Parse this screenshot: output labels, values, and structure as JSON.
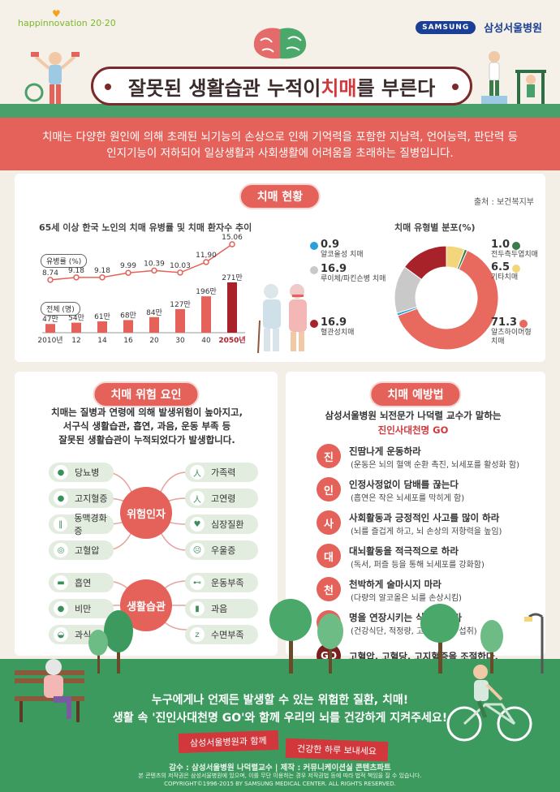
{
  "header": {
    "brand_left": "happinnovation 20·20",
    "samsung": "SAMSUNG",
    "hospital": "삼성서울병원",
    "title_pre": "잘못된 생활습관 누적이 ",
    "title_hl": "치매",
    "title_post": "를 부른다"
  },
  "intro": {
    "line1": "치매는 다양한 원인에 의해 초래된 뇌기능의 손상으로 인해 기억력을 포함한 지남력, 언어능력, 판단력 등",
    "line2": "인지기능이 저하되어 일상생활과 사회생활에 어려움을 초래하는 질병입니다."
  },
  "status": {
    "heading": "치매 현황",
    "source": "출처 : 보건복지부",
    "trend_title": "65세 이상 한국 노인의 치매 유병률 및 치매 환자수 추이",
    "prevalence_label": "유병률 (%)",
    "patients_label": "전체 (명)",
    "pie_title": "치매 유형별 분포(%)"
  },
  "chart_data": [
    {
      "type": "bar",
      "title": "65세 이상 한국 노인의 치매 유병률 및 치매 환자수 추이",
      "categories": [
        "2010년",
        "12",
        "14",
        "16",
        "20",
        "30",
        "40",
        "2050년"
      ],
      "series": [
        {
          "name": "전체 (명)",
          "values": [
            47,
            54,
            61,
            68,
            84,
            127,
            196,
            271
          ],
          "labels": [
            "47만",
            "54만",
            "61만",
            "68만",
            "84만",
            "127만",
            "196만",
            "271만"
          ]
        },
        {
          "name": "유병률 (%)",
          "values": [
            8.74,
            9.18,
            9.18,
            9.99,
            10.39,
            10.03,
            11.9,
            15.06
          ],
          "labels": [
            "8.74",
            "9.18",
            "9.18",
            "9.99",
            "10.39",
            "10.03",
            "11,90",
            "15.06"
          ]
        }
      ],
      "colors": {
        "bar": "#e5625a",
        "bar_last": "#a8222a",
        "line": "#e5625a"
      }
    },
    {
      "type": "pie",
      "title": "치매 유형별 분포(%)",
      "slices": [
        {
          "label": "알츠하이머형 치매",
          "value": 71.3,
          "color": "#e86a5e"
        },
        {
          "label": "혈관성치매",
          "value": 16.9,
          "color": "#a8222a"
        },
        {
          "label": "루이체/파킨슨병 치매",
          "value": 16.9,
          "color": "#c9c9c9"
        },
        {
          "label": "알코올성 치매",
          "value": 0.9,
          "color": "#2aa0d8"
        },
        {
          "label": "전두측두엽치매",
          "value": 1.0,
          "color": "#3a7d4a"
        },
        {
          "label": "기타치매",
          "value": 6.5,
          "color": "#f3d67b"
        }
      ]
    }
  ],
  "pie_labels": [
    {
      "value": "0.9",
      "name": "알코올성 치매"
    },
    {
      "value": "16.9",
      "name": "루이체/파킨슨병 치매"
    },
    {
      "value": "16.9",
      "name": "혈관성치매"
    },
    {
      "value": "1.0",
      "name": "전두측두엽치매"
    },
    {
      "value": "6.5",
      "name": "기타치매"
    },
    {
      "value": "71.3",
      "name": "알츠하이머형 치매"
    }
  ],
  "risk": {
    "heading": "치매 위험 요인",
    "desc1": "치매는 질병과 연령에 의해 발생위험이 높아지고,",
    "desc2": "서구식 생활습관, 흡연, 과음, 운동 부족 등",
    "desc3": "잘못된 생활습관이 누적되었다가 발생합니다.",
    "hub1": "위험인자",
    "hub2": "생활습관",
    "factors_left": [
      "당뇨병",
      "고지혈증",
      "동맥경화증",
      "고혈압"
    ],
    "factors_right": [
      "가족력",
      "고연령",
      "심장질환",
      "우울증"
    ],
    "habits_left": [
      "흡연",
      "비만",
      "과식"
    ],
    "habits_right": [
      "운동부족",
      "과음",
      "수면부족"
    ]
  },
  "prevention": {
    "heading": "치매 예방법",
    "intro1": "삼성서울병원 뇌전문가 나덕렬 교수가 말하는",
    "intro2": "진인사대천명 GO",
    "items": [
      {
        "badge": "진",
        "title": "진땀나게 운동하라",
        "sub": "(운동은 뇌의 혈액 순환 촉진, 뇌세포를 활성화 함)"
      },
      {
        "badge": "인",
        "title": "인정사정없이 담배를 끊는다",
        "sub": "(흡연은 작은 뇌세포를 막히게 함)"
      },
      {
        "badge": "사",
        "title": "사회활동과 긍정적인 사고를 많이 하라",
        "sub": "(뇌를 즐겁게 하고, 뇌 손상의 저항력을 높임)"
      },
      {
        "badge": "대",
        "title": "대뇌활동을 적극적으로 하라",
        "sub": "(독서, 퍼즐 등을 통해 뇌세포를 강화함)"
      },
      {
        "badge": "천",
        "title": "천박하게 술마시지 마라",
        "sub": "(다량의 알코올은 뇌를 손상시킴)"
      },
      {
        "badge": "명",
        "title": "명을 연장시키는 식사를 하라",
        "sub": "(건강식단, 적정량, 고른 영양소 섭취)"
      },
      {
        "badge": "GO",
        "title": "고혈압, 고혈당, 고지혈증을 조절한다.",
        "sub": ""
      }
    ]
  },
  "footer": {
    "msg1": "누구에게나 언제든 발생할 수 있는 위험한 질환, 치매!",
    "msg2": "생활 속 '진인사대천명 GO'와 함께 우리의 뇌를 건강하게 지켜주세요!",
    "ribbon1": "삼성서울병원과 함께",
    "ribbon2": "건강한 하루 보내세요",
    "credit1": "감수 : 삼성서울병원 나덕렬교수  |  제작 : 커뮤니케이션실 콘텐츠파트",
    "credit2": "본 콘텐츠의 저작권은 삼성서울병원에 있으며, 이를 무단 이용하는 경우 저작권법 등에 따라 법적 책임을 질 수 있습니다.",
    "credit3": "COPYRIGHT©1996-2015 BY SAMSUNG MEDICAL CENTER. ALL RIGHTS RESERVED."
  }
}
